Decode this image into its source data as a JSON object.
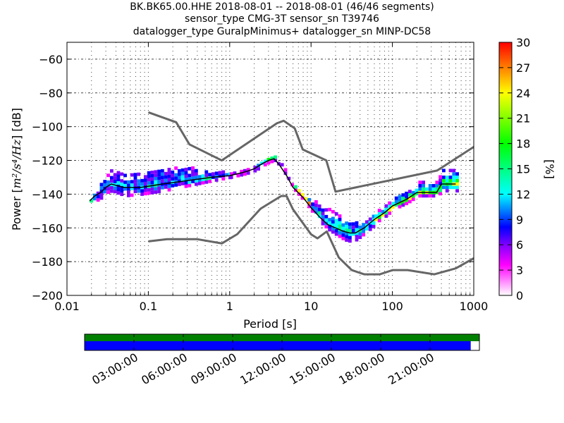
{
  "header": {
    "title_line1": "BK.BK65.00.HHE   2018-08-01 -- 2018-08-01  (46/46 segments)",
    "title_line2": "sensor_type CMG-3T sensor_sn T39746",
    "title_line3": "datalogger_type GuralpMinimus+ datalogger_sn MINP-DC58"
  },
  "chart_data": [
    {
      "type": "heatmap",
      "title": "BK.BK65.00.HHE   2018-08-01 -- 2018-08-01  (46/46 segments)",
      "xlabel": "Period [s]",
      "ylabel_prefix": "Power [",
      "ylabel_units": "m²/s⁴/Hz",
      "ylabel_suffix": "] [dB]",
      "xscale": "log",
      "xlim": [
        0.01,
        1000
      ],
      "ylim": [
        -200,
        -50
      ],
      "xticks": [
        0.01,
        0.1,
        1,
        10,
        100,
        1000
      ],
      "xtick_labels": [
        "0.01",
        "0.1",
        "1",
        "10",
        "100",
        "1000"
      ],
      "yticks": [
        -200,
        -180,
        -160,
        -140,
        -120,
        -100,
        -80,
        -60
      ],
      "ytick_labels": [
        "−200",
        "−180",
        "−160",
        "−140",
        "−120",
        "−100",
        "−80",
        "−60"
      ],
      "grid": true,
      "noise_models": [
        {
          "name": "NHNM",
          "color": "#666666",
          "x": [
            0.1,
            0.22,
            0.32,
            0.8,
            3.8,
            4.6,
            6.3,
            7.9,
            15.4,
            20,
            354.8,
            1000
          ],
          "y": [
            -91.5,
            -97.4,
            -110.5,
            -120,
            -98,
            -96.5,
            -101,
            -113.5,
            -120,
            -138.5,
            -126,
            -112
          ]
        },
        {
          "name": "NLNM",
          "color": "#666666",
          "x": [
            0.1,
            0.17,
            0.4,
            0.8,
            1.24,
            2.4,
            4.3,
            5,
            6,
            10,
            12,
            15.6,
            21.9,
            31.6,
            45,
            70,
            101,
            154,
            328,
            600,
            1000
          ],
          "y": [
            -168,
            -166.7,
            -166.7,
            -169.2,
            -163.7,
            -148.6,
            -141.1,
            -141.1,
            -149,
            -163.8,
            -166.2,
            -162.1,
            -177.5,
            -185,
            -187.5,
            -187.5,
            -185,
            -185,
            -187.5,
            -184,
            -178
          ]
        }
      ],
      "mode_line": {
        "name": "mode",
        "color": "#000000",
        "x": [
          0.019,
          0.022,
          0.026,
          0.03,
          0.035,
          0.05,
          0.08,
          0.15,
          0.3,
          0.6,
          1,
          1.5,
          2,
          2.5,
          3,
          3.5,
          4,
          5,
          6,
          8,
          10,
          13,
          16,
          20,
          25,
          30,
          35,
          45,
          60,
          80,
          100,
          150,
          200,
          350,
          400,
          600
        ],
        "y": [
          -144,
          -141,
          -139,
          -136,
          -134,
          -136,
          -136,
          -134,
          -132,
          -130,
          -129,
          -127,
          -125,
          -122,
          -120,
          -119,
          -122,
          -129,
          -136,
          -142,
          -148,
          -154,
          -158,
          -160,
          -162,
          -163,
          -163,
          -160,
          -155,
          -151,
          -147,
          -143,
          -139,
          -139,
          -134,
          -134
        ]
      },
      "histogram": {
        "colorbar_label": "[%]",
        "colorbar_min": 0,
        "colorbar_max": 30,
        "colorbar_ticks": [
          0,
          3,
          6,
          9,
          12,
          15,
          18,
          21,
          24,
          27,
          30
        ],
        "colormap": [
          "#ffffff",
          "#ff00ff",
          "#0000ff",
          "#00ffff",
          "#00ff00",
          "#ffff00",
          "#ff7f00",
          "#ff0000"
        ],
        "bands": [
          {
            "x": [
              0.019,
              0.022,
              0.026,
              0.03,
              0.035,
              0.05,
              0.08,
              0.15,
              0.3,
              0.6,
              1
            ],
            "center": [
              -144,
              -141,
              -139,
              -136,
              -134,
              -136,
              -136,
              -134,
              -132,
              -130,
              -129
            ],
            "spread_up": [
              3,
              4,
              6,
              8,
              9,
              9,
              9,
              9,
              8,
              4,
              2
            ],
            "spread_down": [
              2,
              3,
              3,
              3,
              4,
              5,
              4,
              4,
              3,
              2,
              1
            ],
            "peak_pct": 12
          },
          {
            "x": [
              1,
              1.5,
              2,
              2.5,
              3,
              3.5,
              4,
              5,
              6,
              8,
              10
            ],
            "center": [
              -129,
              -127,
              -125,
              -122,
              -120,
              -119,
              -122,
              -129,
              -136,
              -142,
              -148
            ],
            "spread_up": [
              1,
              1,
              1,
              2,
              2,
              2,
              1,
              1,
              2,
              3,
              4
            ],
            "spread_down": [
              1,
              1,
              1,
              1,
              1,
              1,
              1,
              1,
              1,
              2,
              2
            ],
            "peak_pct": 28
          },
          {
            "x": [
              10,
              13,
              16,
              20,
              25,
              30,
              35,
              45,
              60
            ],
            "center": [
              -148,
              -154,
              -158,
              -160,
              -162,
              -163,
              -163,
              -160,
              -155
            ],
            "spread_up": [
              6,
              8,
              9,
              9,
              8,
              7,
              6,
              5,
              4
            ],
            "spread_down": [
              2,
              3,
              3,
              4,
              5,
              5,
              4,
              3,
              3
            ],
            "peak_pct": 14
          },
          {
            "x": [
              60,
              80,
              100,
              150,
              200,
              350,
              400,
              600
            ],
            "center": [
              -155,
              -151,
              -147,
              -143,
              -139,
              -139,
              -134,
              -134
            ],
            "spread_up": [
              4,
              4,
              5,
              5,
              6,
              6,
              9,
              9
            ],
            "spread_down": [
              2,
              2,
              2,
              2,
              2,
              2,
              4,
              4
            ],
            "peak_pct": 20
          }
        ]
      }
    },
    {
      "type": "timeline",
      "name": "data-coverage",
      "xtick_labels": [
        "03:00:00",
        "06:00:00",
        "09:00:00",
        "12:00:00",
        "15:00:00",
        "18:00:00",
        "21:00:00"
      ],
      "xrange_hours": [
        0,
        24
      ],
      "bars": [
        {
          "name": "psd-segments",
          "color": "#008000",
          "coverage_fraction": 1.0
        },
        {
          "name": "data-availability",
          "color": "#0000ff",
          "coverage_fraction": 0.978
        }
      ]
    }
  ]
}
